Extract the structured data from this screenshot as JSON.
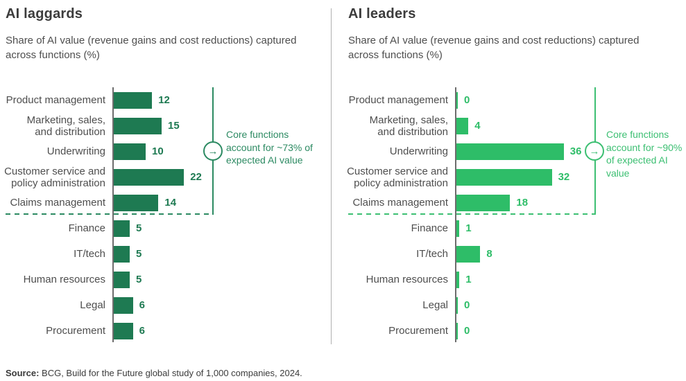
{
  "chart_data": [
    {
      "type": "bar",
      "orientation": "horizontal",
      "title": "AI laggards",
      "subtitle": "Share of AI value (revenue gains and cost reductions) captured across functions (%)",
      "categories": [
        "Product management",
        "Marketing, sales,\nand distribution",
        "Underwriting",
        "Customer service and\npolicy administration",
        "Claims management",
        "Finance",
        "IT/tech",
        "Human resources",
        "Legal",
        "Procurement"
      ],
      "values": [
        12,
        15,
        10,
        22,
        14,
        5,
        5,
        5,
        6,
        6
      ],
      "core_function_rows": 5,
      "annotation": "Core functions account for ~73% of expected AI value",
      "bar_color": "#1e7a52",
      "accent_color": "#2c8a62",
      "value_labels": true,
      "xlim": [
        0,
        40
      ],
      "grid": false,
      "legend": "none"
    },
    {
      "type": "bar",
      "orientation": "horizontal",
      "title": "AI leaders",
      "subtitle": "Share of AI value (revenue gains and cost reductions) captured across functions (%)",
      "categories": [
        "Product management",
        "Marketing, sales,\nand distribution",
        "Underwriting",
        "Customer service and\npolicy administration",
        "Claims management",
        "Finance",
        "IT/tech",
        "Human resources",
        "Legal",
        "Procurement"
      ],
      "values": [
        0,
        4,
        36,
        32,
        18,
        1,
        8,
        1,
        0,
        0
      ],
      "core_function_rows": 5,
      "annotation": "Core functions account for ~90% of expected AI value",
      "bar_color": "#2ebd68",
      "accent_color": "#3cbf72",
      "value_labels": true,
      "xlim": [
        0,
        40
      ],
      "grid": false,
      "legend": "none"
    }
  ],
  "footer": {
    "label": "Source:",
    "text": " BCG, Build for the Future global study of 1,000 companies, 2024."
  },
  "colors": {
    "background": "#ffffff",
    "title_text": "#3c3c3c",
    "label_text": "#4e4e4e",
    "axis": "#6d6d6d",
    "divider": "#b0b0b0",
    "laggards_green": "#1e7a52",
    "leaders_green": "#2ebd68"
  }
}
